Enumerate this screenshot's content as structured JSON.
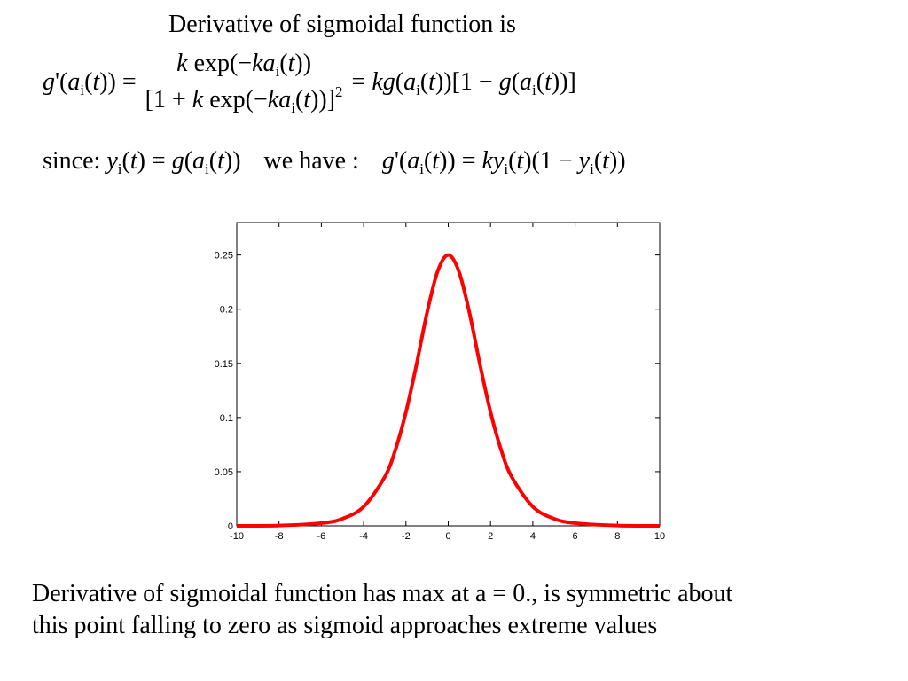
{
  "title": "Derivative of sigmoidal function is",
  "equation1": {
    "lhs": "g'(a_i(t)) =",
    "numerator": "k exp(−ka_i(t))",
    "denominator": "[1 + k exp(−ka_i(t))]^2",
    "rhs": "= kg(a_i(t))[1 − g(a_i(t))]"
  },
  "equation2": {
    "since_label": "since:",
    "since_expr": "y_i(t) = g(a_i(t))",
    "we_have_label": "we have :",
    "result_expr": "g'(a_i(t)) = ky_i(t)(1 − y_i(t))"
  },
  "chart_data": {
    "type": "line",
    "title": "",
    "xlabel": "",
    "ylabel": "",
    "xlim": [
      -10,
      10
    ],
    "ylim": [
      0,
      0.28
    ],
    "xticks": [
      -10,
      -8,
      -6,
      -4,
      -2,
      0,
      2,
      4,
      6,
      8,
      10
    ],
    "xtick_labels": [
      "-10",
      "-8",
      "-6",
      "-4",
      "-2",
      "0",
      "2",
      "4",
      "6",
      "8",
      "10"
    ],
    "yticks": [
      0,
      0.05,
      0.1,
      0.15,
      0.2,
      0.25
    ],
    "ytick_labels": [
      "0",
      "0.05",
      "0.1",
      "0.15",
      "0.2",
      "0.25"
    ],
    "grid": false,
    "series": [
      {
        "color": "#ff0000",
        "x": [
          -10,
          -8,
          -6,
          -5,
          -4,
          -3,
          -2.5,
          -2,
          -1.5,
          -1,
          -0.5,
          0,
          0.5,
          1,
          1.5,
          2,
          2.5,
          3,
          4,
          5,
          6,
          8,
          10
        ],
        "y": [
          0.0,
          0.0003,
          0.0025,
          0.0066,
          0.0177,
          0.0452,
          0.0701,
          0.105,
          0.149,
          0.197,
          0.235,
          0.25,
          0.235,
          0.197,
          0.149,
          0.105,
          0.0701,
          0.0452,
          0.0177,
          0.0066,
          0.0025,
          0.0003,
          0.0
        ]
      }
    ]
  },
  "caption": {
    "line1": "Derivative of sigmoidal function has max at a = 0., is symmetric about",
    "line2": "this point falling to zero as sigmoid approaches extreme values"
  }
}
